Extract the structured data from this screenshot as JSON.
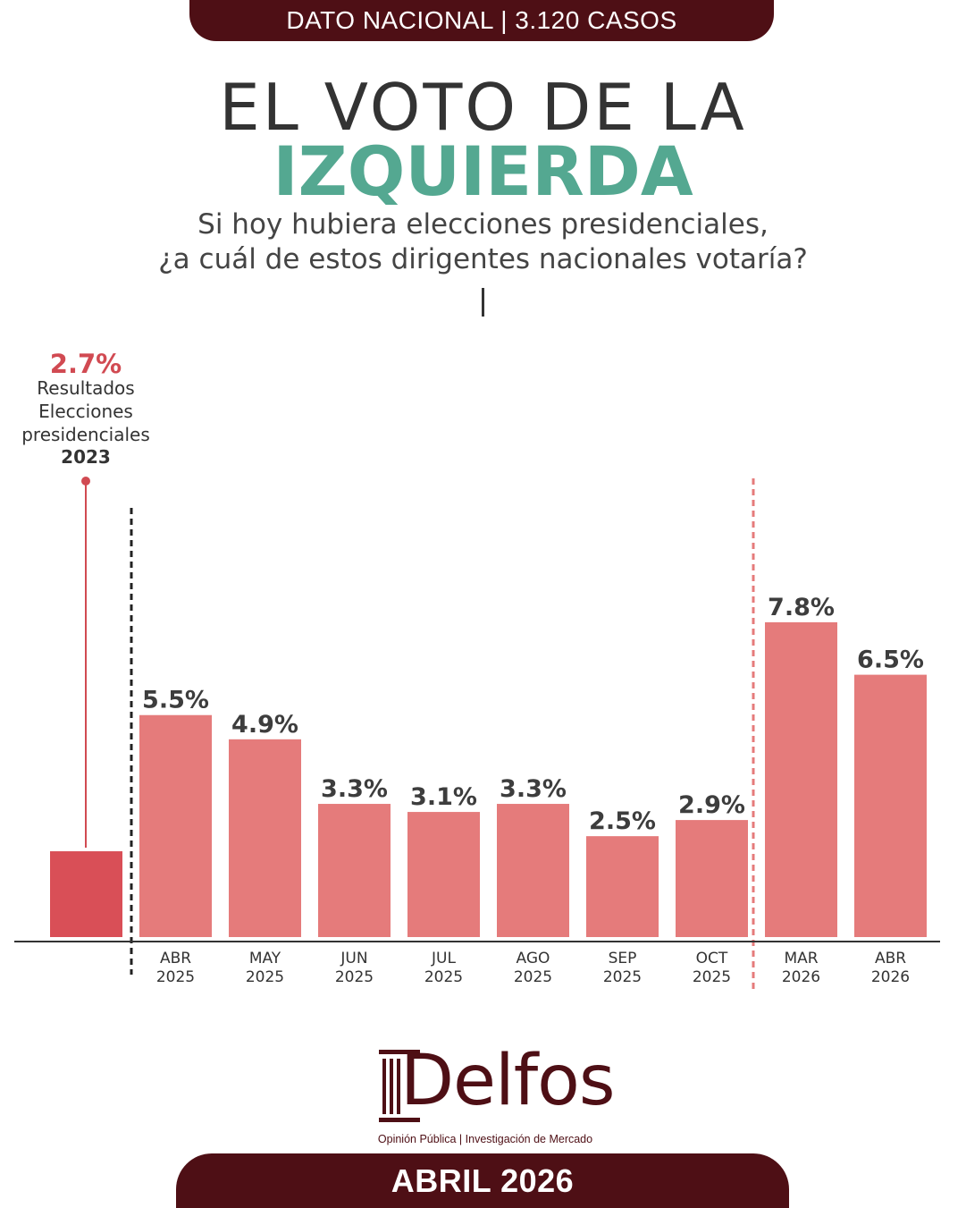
{
  "header": {
    "banner": "DATO NACIONAL | 3.120 CASOS"
  },
  "title": {
    "line1": "EL VOTO DE LA",
    "line2": "IZQUIERDA"
  },
  "subtitle": {
    "line1": "Si hoy hubiera elecciones presidenciales,",
    "line2": "¿a cuál de estos dirigentes nacionales votaría?"
  },
  "reference": {
    "value_label": "2.7%",
    "value": 2.7,
    "label_lines": [
      "Resultados",
      "Elecciones",
      "presidenciales"
    ],
    "year": "2023"
  },
  "chart_data": {
    "type": "bar",
    "title": "EL VOTO DE LA IZQUIERDA",
    "categories": [
      {
        "month": "ABR",
        "year": "2025"
      },
      {
        "month": "MAY",
        "year": "2025"
      },
      {
        "month": "JUN",
        "year": "2025"
      },
      {
        "month": "JUL",
        "year": "2025"
      },
      {
        "month": "AGO",
        "year": "2025"
      },
      {
        "month": "SEP",
        "year": "2025"
      },
      {
        "month": "OCT",
        "year": "2025"
      },
      {
        "month": "MAR",
        "year": "2026"
      },
      {
        "month": "ABR",
        "year": "2026"
      }
    ],
    "values": [
      5.5,
      4.9,
      3.3,
      3.1,
      3.3,
      2.5,
      2.9,
      7.8,
      6.5
    ],
    "labels": [
      "5.5%",
      "4.9%",
      "3.3%",
      "3.1%",
      "3.3%",
      "2.5%",
      "2.9%",
      "7.8%",
      "6.5%"
    ],
    "reference_value": 2.7,
    "ylim": [
      0,
      8.3
    ],
    "xlabel": "",
    "ylabel": "",
    "colors": {
      "bar": "#e57b7b",
      "reference_bar": "#d94f57",
      "reference_label": "#d14a52",
      "value_text": "#3d3d3d",
      "axis": "#333333"
    }
  },
  "logo": {
    "name": "Delfos",
    "tagline": "Opinión Pública | Investigación de Mercado"
  },
  "footer": {
    "date": "ABRIL 2026"
  },
  "colors": {
    "brand": "#4e0f15",
    "accent": "#54a891"
  }
}
